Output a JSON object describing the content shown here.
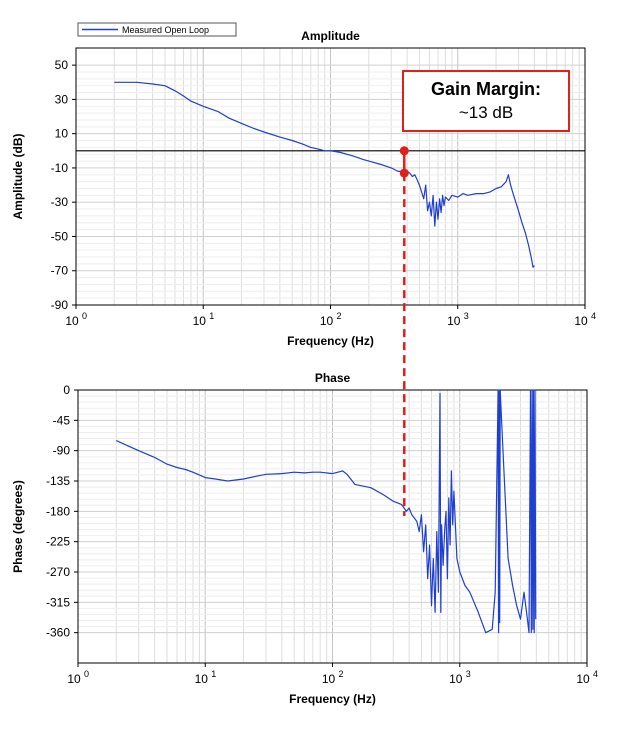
{
  "chart_data": [
    {
      "type": "line",
      "title": "Amplitude",
      "xlabel": "Frequency (Hz)",
      "ylabel": "Amplitude (dB)",
      "xscale": "log",
      "xlim": [
        1,
        10000
      ],
      "ylim": [
        -90,
        60
      ],
      "yticks": [
        50,
        30,
        10,
        -10,
        -30,
        -50,
        -70,
        -90
      ],
      "xtick_bases": [
        "10",
        "10",
        "10",
        "10",
        "10"
      ],
      "xtick_exps": [
        "0",
        "1",
        "2",
        "3",
        "4"
      ],
      "grid": true,
      "legend": {
        "position": "top-left",
        "entries": [
          "Measured Open Loop"
        ]
      },
      "reference_line_y": 0,
      "series": [
        {
          "name": "Measured Open Loop",
          "color": "#1f3fd0",
          "x": [
            2,
            3,
            4,
            5,
            6,
            7,
            8,
            10,
            13,
            16,
            20,
            25,
            30,
            40,
            50,
            60,
            70,
            80,
            90,
            100,
            120,
            150,
            180,
            200,
            250,
            300,
            340,
            360,
            380,
            400,
            420,
            440,
            460,
            480,
            500,
            520,
            540,
            560,
            580,
            600,
            620,
            640,
            660,
            680,
            700,
            720,
            740,
            760,
            780,
            800,
            850,
            900,
            1000,
            1100,
            1200,
            1400,
            1600,
            1800,
            2000,
            2200,
            2400,
            2500,
            2600,
            2700,
            2800,
            3000,
            3200,
            3400,
            3600,
            3800,
            3900,
            4000
          ],
          "y": [
            40,
            40,
            39,
            38,
            35,
            32,
            29,
            26,
            23,
            19,
            16,
            13,
            11,
            8,
            6,
            4,
            2,
            1,
            0,
            0,
            -1,
            -3,
            -5,
            -6,
            -8,
            -10,
            -12,
            -12,
            -13,
            -12,
            -13,
            -15,
            -14,
            -17,
            -20,
            -24,
            -28,
            -20,
            -35,
            -30,
            -38,
            -26,
            -44,
            -30,
            -40,
            -28,
            -36,
            -26,
            -32,
            -27,
            -29,
            -26,
            -27,
            -25,
            -26,
            -25,
            -25,
            -24,
            -22,
            -21,
            -18,
            -14,
            -20,
            -24,
            -28,
            -35,
            -42,
            -48,
            -55,
            -63,
            -68,
            -67
          ]
        }
      ],
      "annotation": {
        "title": "Gain Margin",
        "colon": ":",
        "value": "~13 dB",
        "color": "#e0201b",
        "marker_x": 380,
        "marker_y_top": 0,
        "marker_y_bottom": -13
      }
    },
    {
      "type": "line",
      "title": "Phase",
      "xlabel": "Frequency (Hz)",
      "ylabel": "Phase (degrees)",
      "xscale": "log",
      "xlim": [
        1,
        10000
      ],
      "ylim": [
        -405,
        0
      ],
      "yticks": [
        0,
        -45,
        -90,
        -135,
        -180,
        -225,
        -270,
        -315,
        -360
      ],
      "xtick_bases": [
        "10",
        "10",
        "10",
        "10",
        "10"
      ],
      "xtick_exps": [
        "0",
        "1",
        "2",
        "3",
        "4"
      ],
      "grid": true,
      "series": [
        {
          "name": "Measured Open Loop",
          "color": "#1f3fd0",
          "x": [
            2,
            3,
            4,
            5,
            6,
            7,
            8,
            10,
            12,
            15,
            20,
            25,
            30,
            40,
            50,
            60,
            70,
            80,
            100,
            120,
            130,
            150,
            200,
            250,
            300,
            350,
            380,
            400,
            420,
            440,
            460,
            480,
            500,
            520,
            540,
            560,
            580,
            600,
            620,
            640,
            660,
            680,
            700,
            710,
            720,
            740,
            760,
            780,
            800,
            820,
            840,
            860,
            880,
            900,
            950,
            1000,
            1100,
            1200,
            1400,
            1600,
            1800,
            1900,
            2000,
            2020,
            2040,
            2060,
            2080,
            2100,
            2200,
            2400,
            2600,
            2800,
            3000,
            3200,
            3400,
            3500,
            3600,
            3650,
            3700,
            3750,
            3800,
            3850,
            3900,
            3950
          ],
          "y": [
            -75,
            -90,
            -100,
            -110,
            -115,
            -118,
            -122,
            -130,
            -132,
            -135,
            -132,
            -128,
            -125,
            -124,
            -122,
            -123,
            -122,
            -122,
            -124,
            -120,
            -125,
            -140,
            -145,
            -155,
            -165,
            -170,
            -180,
            -175,
            -185,
            -190,
            -195,
            -210,
            -185,
            -240,
            -200,
            -280,
            -230,
            -320,
            -250,
            -330,
            -210,
            -300,
            -5,
            -330,
            -200,
            -260,
            -210,
            -180,
            -280,
            -160,
            -230,
            -120,
            -200,
            -150,
            -250,
            -270,
            -290,
            -300,
            -330,
            -360,
            -355,
            -300,
            0,
            -360,
            0,
            -345,
            0,
            -20,
            -100,
            -250,
            -290,
            -320,
            -340,
            -300,
            -340,
            -360,
            0,
            -360,
            0,
            -355,
            0,
            -360,
            0,
            -340
          ]
        }
      ]
    }
  ]
}
